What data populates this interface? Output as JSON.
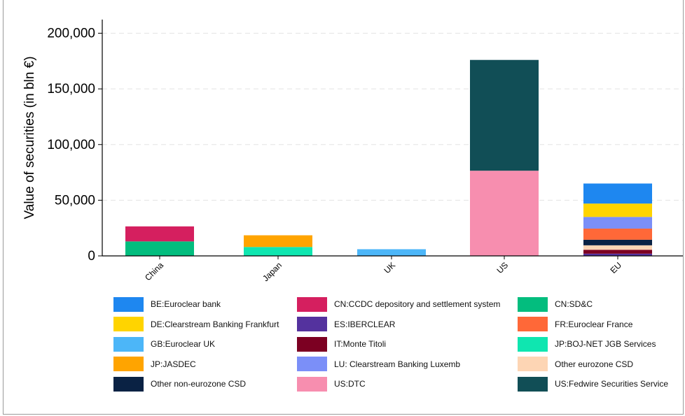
{
  "chart_data": {
    "type": "bar",
    "stacked": true,
    "ylabel": "Value of securities (in bln €)",
    "xlabel": "",
    "ylim": [
      0,
      200000
    ],
    "yticks": [
      0,
      50000,
      100000,
      150000,
      200000
    ],
    "ytick_labels": [
      "0",
      "50,000",
      "100,000",
      "150,000",
      "200,000"
    ],
    "grid": "horizontal dashed",
    "legend_position": "bottom",
    "categories": [
      "China",
      "Japan",
      "UK",
      "US",
      "EU"
    ],
    "series": [
      {
        "name": "BE:Euroclear bank",
        "color": "#1e87f0",
        "values": [
          0,
          0,
          0,
          0,
          18000
        ]
      },
      {
        "name": "CN:CCDC depository and settlement system",
        "color": "#d51f5f",
        "values": [
          13500,
          0,
          0,
          0,
          0
        ]
      },
      {
        "name": "CN:SD&C",
        "color": "#03bd7e",
        "values": [
          13000,
          0,
          0,
          0,
          0
        ]
      },
      {
        "name": "DE:Clearstream Banking Frankfurt",
        "color": "#ffd400",
        "values": [
          0,
          0,
          0,
          0,
          12000
        ]
      },
      {
        "name": "ES:IBERCLEAR",
        "color": "#54329e",
        "values": [
          0,
          0,
          0,
          0,
          2000
        ]
      },
      {
        "name": "FR:Euroclear France",
        "color": "#ff6838",
        "values": [
          0,
          0,
          0,
          0,
          10000
        ]
      },
      {
        "name": "GB:Euroclear UK",
        "color": "#4cb6f8",
        "values": [
          0,
          0,
          6000,
          0,
          0
        ]
      },
      {
        "name": "IT:Monte Titoli",
        "color": "#7c0022",
        "values": [
          0,
          0,
          0,
          0,
          3500
        ]
      },
      {
        "name": "JP:BOJ-NET JGB Services",
        "color": "#0fe6b0",
        "values": [
          0,
          8000,
          0,
          0,
          0
        ]
      },
      {
        "name": "JP:JASDEC",
        "color": "#ffa400",
        "values": [
          0,
          10500,
          0,
          0,
          0
        ]
      },
      {
        "name": "LU: Clearstream Banking Luxemb",
        "color": "#7b8ff8",
        "values": [
          0,
          0,
          0,
          0,
          10500
        ]
      },
      {
        "name": "Other eurozone CSD",
        "color": "#fdd5b4",
        "values": [
          0,
          0,
          0,
          0,
          4000
        ]
      },
      {
        "name": "Other non-eurozone CSD",
        "color": "#0a2244",
        "values": [
          0,
          0,
          0,
          0,
          5000
        ]
      },
      {
        "name": "US:DTC",
        "color": "#f78eaf",
        "values": [
          0,
          0,
          0,
          76500,
          0
        ]
      },
      {
        "name": "US:Fedwire Securities Service",
        "color": "#114e56",
        "values": [
          0,
          0,
          0,
          99500,
          0
        ]
      }
    ],
    "stack_order": {
      "China": [
        "CN:SD&C",
        "CN:CCDC depository and settlement system"
      ],
      "Japan": [
        "JP:BOJ-NET JGB Services",
        "JP:JASDEC"
      ],
      "UK": [
        "GB:Euroclear UK"
      ],
      "US": [
        "US:DTC",
        "US:Fedwire Securities Service"
      ],
      "EU": [
        "ES:IBERCLEAR",
        "IT:Monte Titoli",
        "Other eurozone CSD",
        "Other non-eurozone CSD",
        "FR:Euroclear France",
        "LU: Clearstream Banking Luxemb",
        "DE:Clearstream Banking Frankfurt",
        "BE:Euroclear bank"
      ]
    }
  }
}
